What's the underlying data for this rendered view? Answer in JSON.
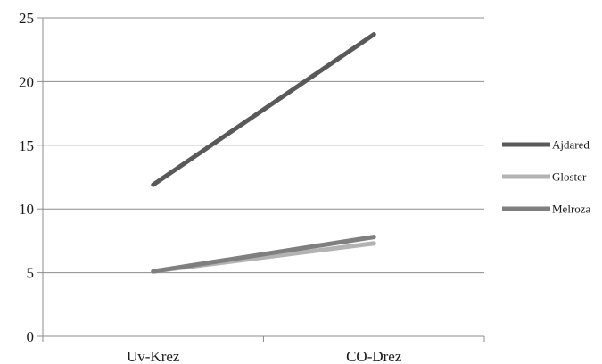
{
  "chart_data": {
    "type": "line",
    "categories": [
      "Uv-Krez",
      "CO-Drez"
    ],
    "series": [
      {
        "name": "Ajdared",
        "values": [
          11.9,
          23.7
        ],
        "color": "#595959"
      },
      {
        "name": "Gloster",
        "values": [
          5.1,
          7.3
        ],
        "color": "#b3b3b3"
      },
      {
        "name": "Melroza",
        "values": [
          5.1,
          7.8
        ],
        "color": "#7f7f7f"
      }
    ],
    "ylim": [
      0,
      25
    ],
    "yticks": [
      0,
      5,
      10,
      15,
      20,
      25
    ],
    "ytick_labels": [
      "0",
      "5",
      "10",
      "15",
      "20",
      "25"
    ],
    "grid": true,
    "legend": "right",
    "title": "",
    "xlabel": "",
    "ylabel": ""
  }
}
